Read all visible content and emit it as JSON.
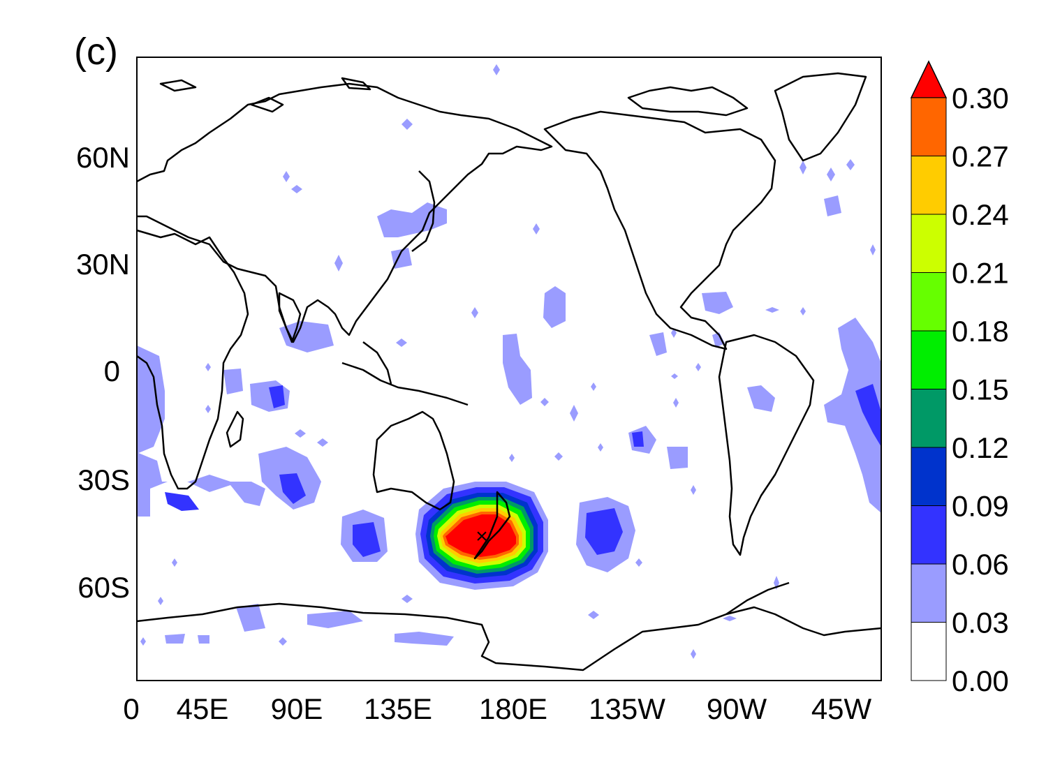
{
  "panel_label": "(c)",
  "axes": {
    "x_ticks": [
      "0",
      "45E",
      "90E",
      "135E",
      "180E",
      "135W",
      "90W",
      "45W"
    ],
    "y_ticks": [
      "60N",
      "30N",
      "0",
      "30S",
      "60S"
    ]
  },
  "map": {
    "projection": "cylindrical equidistant",
    "lon_range": [
      0,
      360
    ],
    "lat_range": [
      -85,
      85
    ],
    "marker": {
      "symbol": "×",
      "lon": 172,
      "lat": -47
    }
  },
  "colorbar": {
    "levels": [
      "0.00",
      "0.03",
      "0.06",
      "0.09",
      "0.12",
      "0.15",
      "0.18",
      "0.21",
      "0.24",
      "0.27",
      "0.30"
    ],
    "colors": [
      "#ffffff",
      "#9a9cff",
      "#3333ff",
      "#0033cc",
      "#009966",
      "#00ee00",
      "#66ff00",
      "#ccff00",
      "#ffcc00",
      "#ff6600",
      "#ff0000"
    ],
    "triangle_color": "#ff0000"
  },
  "colors": {
    "coast": "#000000",
    "frame": "#000000"
  }
}
